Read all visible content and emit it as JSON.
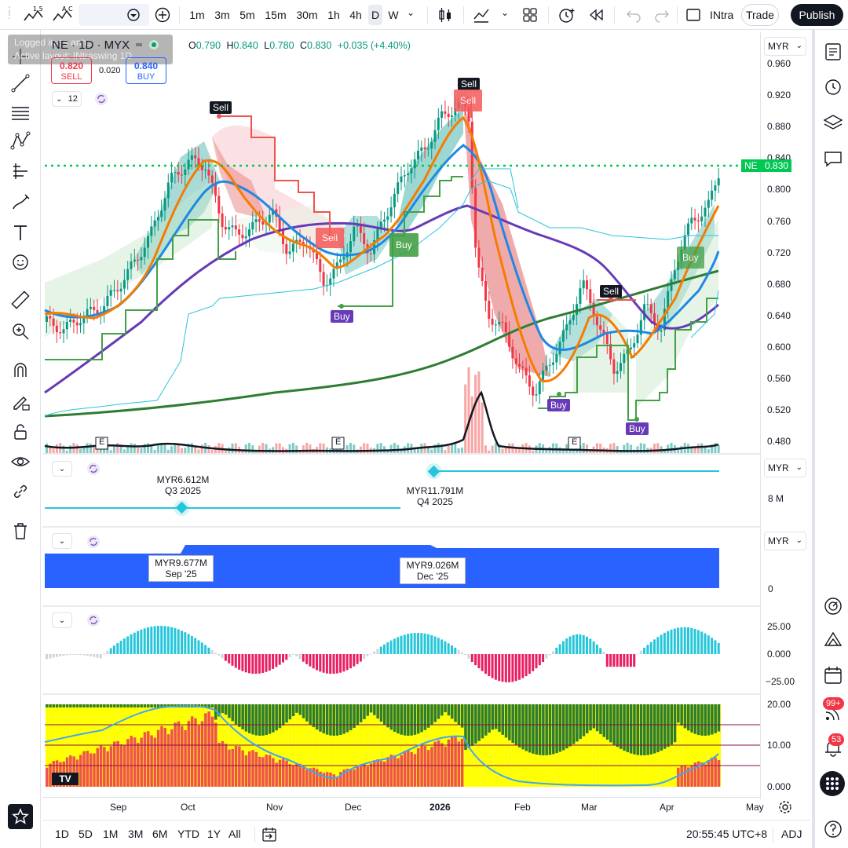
{
  "toolbar": {
    "timeframes": [
      "1m",
      "3m",
      "5m",
      "15m",
      "30m",
      "1h",
      "4h",
      "D",
      "W"
    ],
    "active_timeframe": "D",
    "layout_name": "INtra",
    "trade_label": "Trade",
    "publish_label": "Publish"
  },
  "overlay": {
    "logged_in_text": "Logged in as anh...",
    "active_layout_text": "Active layout: INtraswing 1D"
  },
  "legend": {
    "symbol": "NE · 1D · MYX",
    "open_key": "O",
    "open": "0.790",
    "high_key": "H",
    "high": "0.840",
    "low_key": "L",
    "low": "0.780",
    "close_key": "C",
    "close": "0.830",
    "change": "+0.035 (+4.40%)",
    "sell_price": "0.820",
    "sell_label": "SELL",
    "spread": "0.020",
    "buy_price": "0.840",
    "buy_label": "BUY",
    "indicator_count": "12"
  },
  "currency": "MYR",
  "price_axis": [
    "0.960",
    "0.920",
    "0.880",
    "0.840",
    "0.800",
    "0.760",
    "0.720",
    "0.680",
    "0.640",
    "0.600",
    "0.560",
    "0.520",
    "0.480"
  ],
  "last_price_label": {
    "symbol": "NE",
    "price": "0.830"
  },
  "signals": {
    "sell": "Sell",
    "buy": "Buy",
    "earnings": "E"
  },
  "revenue_pane": {
    "q3_value": "MYR6.612M",
    "q3_period": "Q3 2025",
    "q4_value": "MYR11.791M",
    "q4_period": "Q4 2025",
    "axis_label": "8 M"
  },
  "income_pane": {
    "sep_value": "MYR9.677M",
    "sep_period": "Sep '25",
    "dec_value": "MYR9.026M",
    "dec_period": "Dec '25",
    "axis_label": "0"
  },
  "osc_pane": {
    "axis": [
      "25.00",
      "0.000",
      "−25.00"
    ]
  },
  "adx_pane": {
    "axis": [
      "20.00",
      "10.00",
      "0.000"
    ]
  },
  "time_axis": [
    "Sep",
    "Oct",
    "Nov",
    "Dec",
    "2026",
    "Feb",
    "Mar",
    "Apr",
    "May"
  ],
  "bottom": {
    "ranges": [
      "1D",
      "5D",
      "1M",
      "3M",
      "6M",
      "YTD",
      "1Y",
      "All"
    ],
    "clock": "20:55:45 UTC+8",
    "adj": "ADJ"
  },
  "badges": {
    "alerts": "99+",
    "notifications": "53"
  },
  "colors": {
    "up": "#089981",
    "down": "#f23645",
    "buy_blue": "#2962ff",
    "sell_tag": "#f55a5a",
    "buy_tag": "#43a047",
    "buy_purple": "#673ab7",
    "last_price": "#00c853",
    "cyan": "#26c6da",
    "magenta": "#e91e63",
    "yellow": "#ffff00",
    "green_bar": "#2e7d32",
    "red_bar": "#ef5350"
  }
}
